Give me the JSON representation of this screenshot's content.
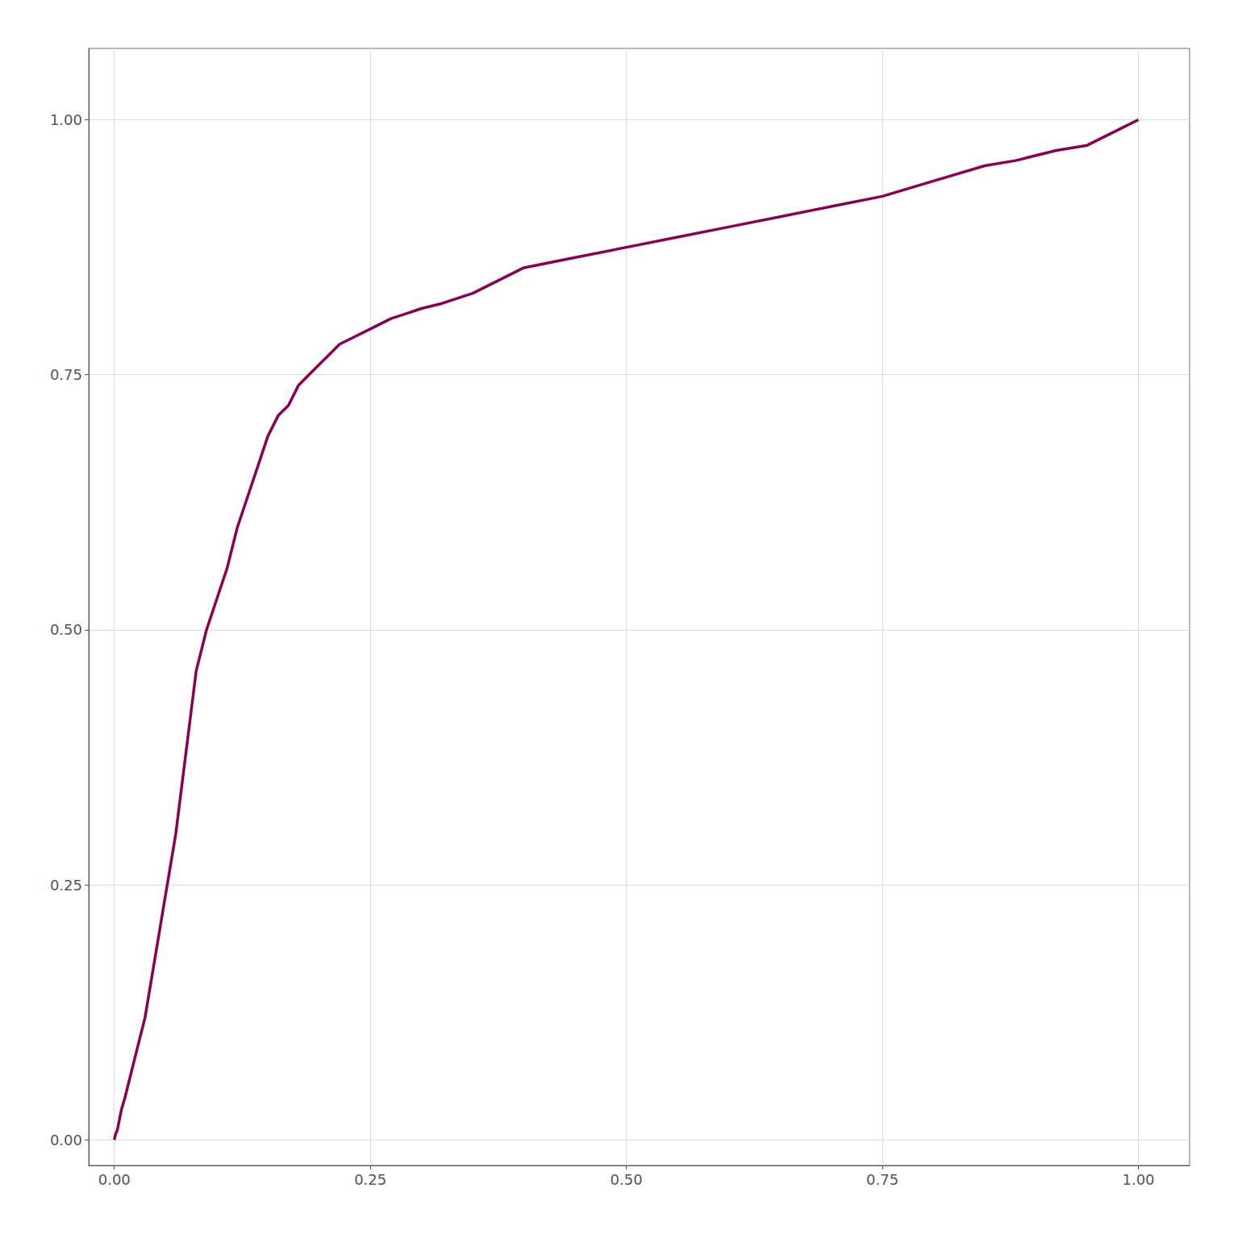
{
  "chart_data": {
    "type": "line",
    "x": [
      0.0,
      0.001,
      0.003,
      0.005,
      0.007,
      0.01,
      0.015,
      0.02,
      0.025,
      0.03,
      0.035,
      0.04,
      0.045,
      0.05,
      0.055,
      0.06,
      0.065,
      0.07,
      0.075,
      0.08,
      0.09,
      0.1,
      0.11,
      0.12,
      0.13,
      0.14,
      0.15,
      0.16,
      0.17,
      0.18,
      0.19,
      0.2,
      0.21,
      0.22,
      0.23,
      0.25,
      0.27,
      0.3,
      0.32,
      0.35,
      0.4,
      0.45,
      0.5,
      0.55,
      0.6,
      0.65,
      0.7,
      0.75,
      0.8,
      0.85,
      0.88,
      0.9,
      0.92,
      0.95,
      0.98,
      1.0
    ],
    "values": [
      0.0,
      0.005,
      0.01,
      0.02,
      0.03,
      0.04,
      0.06,
      0.08,
      0.1,
      0.12,
      0.15,
      0.18,
      0.21,
      0.24,
      0.27,
      0.3,
      0.34,
      0.38,
      0.42,
      0.46,
      0.5,
      0.53,
      0.56,
      0.6,
      0.63,
      0.66,
      0.69,
      0.71,
      0.72,
      0.74,
      0.75,
      0.76,
      0.77,
      0.78,
      0.785,
      0.795,
      0.805,
      0.815,
      0.82,
      0.83,
      0.855,
      0.865,
      0.875,
      0.885,
      0.895,
      0.905,
      0.915,
      0.925,
      0.94,
      0.955,
      0.96,
      0.965,
      0.97,
      0.975,
      0.99,
      1.0
    ],
    "color": "#8B0057",
    "xlim": [
      -0.025,
      1.05
    ],
    "ylim": [
      -0.025,
      1.07
    ],
    "xticks": [
      {
        "value": 0.0,
        "label": "0.00"
      },
      0.25,
      {
        "value": 0.5,
        "label": "0.50"
      },
      0.75,
      {
        "value": 1.0,
        "label": "1.00"
      }
    ],
    "yticks": [
      {
        "value": 0.0,
        "label": "0.00"
      },
      0.25,
      {
        "value": 0.5,
        "label": "0.50"
      },
      0.75,
      {
        "value": 1.0,
        "label": "1.00"
      }
    ],
    "grid": true
  }
}
